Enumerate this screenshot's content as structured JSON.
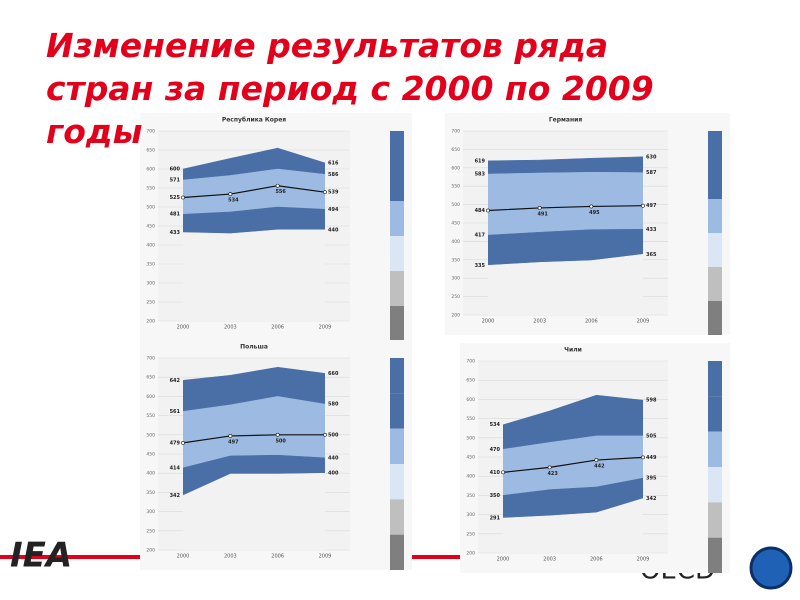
{
  "title": "Изменение результатов ряда стран за период с 2000 по 2009 годы",
  "chart_data": [
    {
      "type": "band",
      "title": "Республика Корея",
      "categories": [
        "2000",
        "2003",
        "2006",
        "2009"
      ],
      "ylim": [
        200,
        700
      ],
      "yticks": [
        200,
        250,
        300,
        350,
        400,
        450,
        500,
        550,
        600,
        650,
        700
      ],
      "grid": true,
      "series": [
        {
          "color": "#4a6ea6",
          "fill": "#4a6ea6",
          "values": [
            600,
            628,
            655,
            616
          ]
        },
        {
          "color": "#9dbbe2",
          "fill": "#9dbbe2",
          "values": [
            571,
            583,
            600,
            586
          ]
        },
        {
          "color": "#111111",
          "fill": "#9dbbe2",
          "values": [
            525,
            534,
            556,
            539
          ]
        },
        {
          "color": "#4a6ea6",
          "fill": "#4a6ea6",
          "values": [
            481,
            487,
            500,
            494
          ]
        },
        {
          "color": "#f2f2f2",
          "fill": "#f2f2f2",
          "values": [
            433,
            430,
            440,
            440
          ]
        }
      ]
    },
    {
      "type": "band",
      "title": "Германия",
      "categories": [
        "2000",
        "2003",
        "2006",
        "2009"
      ],
      "ylim": [
        200,
        700
      ],
      "yticks": [
        200,
        250,
        300,
        350,
        400,
        450,
        500,
        550,
        600,
        650,
        700
      ],
      "grid": true,
      "series": [
        {
          "color": "#4a6ea6",
          "fill": "#4a6ea6",
          "values": [
            619,
            621,
            626,
            630
          ]
        },
        {
          "color": "#9dbbe2",
          "fill": "#9dbbe2",
          "values": [
            583,
            586,
            588,
            587
          ]
        },
        {
          "color": "#111111",
          "fill": "#9dbbe2",
          "values": [
            484,
            491,
            495,
            497
          ]
        },
        {
          "color": "#4a6ea6",
          "fill": "#4a6ea6",
          "values": [
            417,
            425,
            432,
            433
          ]
        },
        {
          "color": "#f2f2f2",
          "fill": "#f2f2f2",
          "values": [
            335,
            343,
            348,
            365
          ]
        }
      ]
    },
    {
      "type": "band",
      "title": "Польша",
      "categories": [
        "2000",
        "2003",
        "2006",
        "2009"
      ],
      "ylim": [
        200,
        700
      ],
      "yticks": [
        200,
        250,
        300,
        350,
        400,
        450,
        500,
        550,
        600,
        650,
        700
      ],
      "grid": true,
      "series": [
        {
          "color": "#4a6ea6",
          "fill": "#4a6ea6",
          "values": [
            642,
            655,
            676,
            660
          ]
        },
        {
          "color": "#9dbbe2",
          "fill": "#9dbbe2",
          "values": [
            561,
            578,
            600,
            580
          ]
        },
        {
          "color": "#111111",
          "fill": "#9dbbe2",
          "values": [
            479,
            497,
            500,
            500
          ]
        },
        {
          "color": "#4a6ea6",
          "fill": "#4a6ea6",
          "values": [
            414,
            445,
            447,
            440
          ]
        },
        {
          "color": "#f2f2f2",
          "fill": "#f2f2f2",
          "values": [
            342,
            398,
            398,
            400
          ]
        }
      ]
    },
    {
      "type": "band",
      "title": "Чили",
      "categories": [
        "2000",
        "2003",
        "2006",
        "2009"
      ],
      "ylim": [
        200,
        700
      ],
      "yticks": [
        200,
        250,
        300,
        350,
        400,
        450,
        500,
        550,
        600,
        650,
        700
      ],
      "grid": true,
      "series": [
        {
          "color": "#4a6ea6",
          "fill": "#4a6ea6",
          "values": [
            534,
            570,
            611,
            598
          ]
        },
        {
          "color": "#9dbbe2",
          "fill": "#9dbbe2",
          "values": [
            470,
            488,
            505,
            505
          ]
        },
        {
          "color": "#111111",
          "fill": "#9dbbe2",
          "values": [
            410,
            423,
            442,
            449
          ]
        },
        {
          "color": "#4a6ea6",
          "fill": "#4a6ea6",
          "values": [
            350,
            365,
            372,
            395
          ]
        },
        {
          "color": "#f2f2f2",
          "fill": "#f2f2f2",
          "values": [
            291,
            297,
            305,
            342
          ]
        }
      ]
    }
  ]
}
